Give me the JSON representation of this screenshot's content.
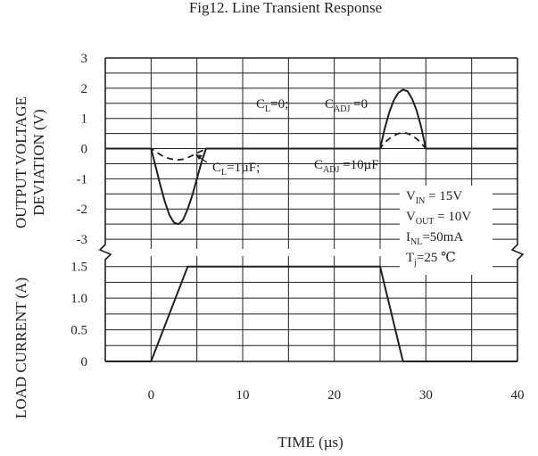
{
  "chart_data": {
    "type": "line",
    "title": "Fig12.  Line Transient Response",
    "xlabel": "TIME (µs)",
    "x_range": [
      -5,
      40
    ],
    "x_ticks": [
      "0",
      "10",
      "20",
      "30",
      "40"
    ],
    "panels": [
      {
        "name": "output-voltage",
        "ylabel_lines": [
          "OUTPUT VOLTAGE",
          "DEVIATION (V)"
        ],
        "ylim": [
          -3.5,
          3
        ],
        "y_ticks": [
          3,
          2,
          1,
          0,
          -1,
          -2,
          -3
        ],
        "y_tick_labels": [
          "3",
          "2",
          "1",
          "0",
          "-1",
          "-2",
          "-3"
        ],
        "series": [
          {
            "style": "solid",
            "x": [
              -5,
              0,
              0.5,
              1,
              1.5,
              2,
              2.5,
              3,
              3.5,
              4,
              4.5,
              5,
              5.5,
              6,
              25,
              25.5,
              26,
              26.5,
              27,
              27.5,
              28,
              28.5,
              29,
              29.5,
              30,
              40
            ],
            "y": [
              0,
              0,
              -0.6,
              -1.2,
              -1.75,
              -2.2,
              -2.45,
              -2.5,
              -2.35,
              -2.0,
              -1.55,
              -1.0,
              -0.45,
              0,
              0,
              0.65,
              1.2,
              1.6,
              1.85,
              1.95,
              1.9,
              1.65,
              1.25,
              0.7,
              0,
              0
            ]
          },
          {
            "style": "dashed",
            "x": [
              -5,
              0,
              0.5,
              1,
              1.5,
              2,
              2.5,
              3,
              3.5,
              4,
              4.5,
              5,
              5.5,
              6,
              25,
              25.5,
              26,
              26.5,
              27,
              27.5,
              28,
              28.5,
              29,
              29.5,
              30,
              40
            ],
            "y": [
              0,
              0,
              -0.1,
              -0.2,
              -0.28,
              -0.33,
              -0.36,
              -0.37,
              -0.35,
              -0.3,
              -0.23,
              -0.15,
              -0.08,
              0,
              0,
              0.2,
              0.33,
              0.43,
              0.5,
              0.53,
              0.5,
              0.43,
              0.32,
              0.18,
              0,
              0
            ]
          }
        ]
      },
      {
        "name": "load-current",
        "ylabel_lines": [
          "LOAD CURRENT (A)"
        ],
        "ylim": [
          0,
          1.75
        ],
        "y_ticks": [
          1.5,
          1.0,
          0.5,
          0
        ],
        "y_tick_labels": [
          "1.5",
          "1.0",
          "0.5",
          "0"
        ],
        "series": [
          {
            "style": "solid",
            "x": [
              -5,
              0,
              4,
              25,
              27.5,
              40
            ],
            "y": [
              0,
              0,
              1.5,
              1.5,
              0,
              0
            ]
          }
        ]
      }
    ],
    "annotations": {
      "cl0_main": "C",
      "cl0_sub": "L",
      "cl0_tail": "=0;",
      "cadj0_main": "C",
      "cadj0_sub": "ADJ",
      "cadj0_tail": " =0",
      "cl1_main": "C",
      "cl1_sub": "L",
      "cl1_tail": "=1µF;",
      "cadj10_main": "C",
      "cadj10_sub": "ADJ",
      "cadj10_tail": " =10µF",
      "vin_main": "V",
      "vin_sub": "IN",
      "vin_tail": " = 15V",
      "vout_main": "V",
      "vout_sub": "OUT",
      "vout_tail": " = 10V",
      "inl_main": "I",
      "inl_sub": "NL",
      "inl_tail": "=50mA",
      "tj_main": "T",
      "tj_sub": "j",
      "tj_tail": "=25 ℃"
    },
    "grid": true,
    "colors": {
      "line": "#231f20",
      "grid": "#231f20"
    }
  }
}
